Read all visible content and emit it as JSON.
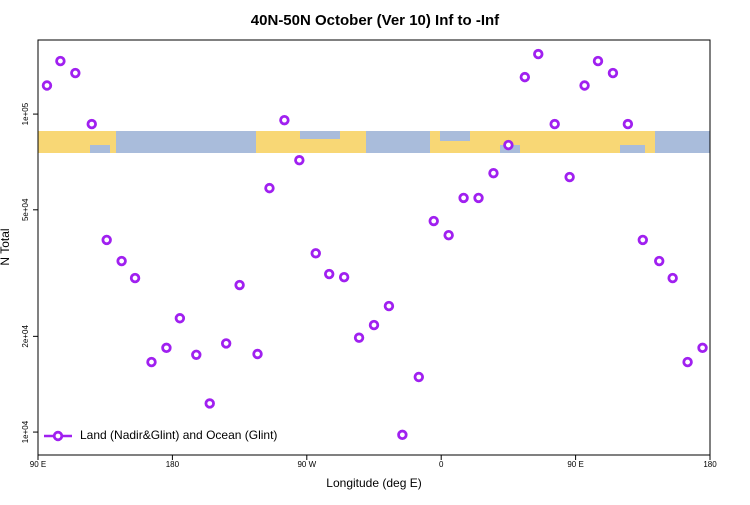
{
  "chart_data": {
    "type": "scatter",
    "title": "40N-50N October (Ver 10)   Inf to -Inf",
    "xlabel": "Longitude (deg E)",
    "ylabel": "N Total",
    "xlim": [
      90,
      540
    ],
    "xticks": [
      {
        "value": 90,
        "label": "90 E"
      },
      180,
      {
        "value": 270,
        "label": "90 W"
      },
      {
        "value": 360,
        "label": "0"
      },
      {
        "value": 450,
        "label": "90 E"
      },
      {
        "value": 540,
        "label": "180"
      }
    ],
    "ylim": [
      8470,
      171000
    ],
    "log_y": true,
    "yticks": [
      {
        "value": 10000,
        "label": "1e+04"
      },
      {
        "value": 20000,
        "label": "2e+04"
      },
      {
        "value": 50000,
        "label": "5e+04"
      },
      {
        "value": 100000,
        "label": "1e+05"
      }
    ],
    "legend": "bottom-left",
    "series": [
      {
        "name": "Land (Nadir&Glint) and Ocean (Glint)",
        "color": "#a020f0",
        "x": [
          96,
          105,
          115,
          126,
          136,
          146,
          155,
          166,
          176,
          185,
          196,
          205,
          216,
          225,
          237,
          245,
          255,
          265,
          276,
          285,
          295,
          305,
          315,
          325,
          334,
          345,
          355,
          365,
          375,
          385,
          395,
          405,
          416,
          425,
          436,
          446,
          456,
          465,
          475,
          485,
          495,
          506,
          515,
          525,
          535
        ],
        "values": [
          123000,
          146800,
          134600,
          93000,
          40200,
          34500,
          30500,
          16600,
          18400,
          22800,
          17500,
          12300,
          19000,
          29000,
          17600,
          58500,
          95700,
          71600,
          36500,
          31400,
          30700,
          19800,
          21700,
          24900,
          9800,
          14900,
          46100,
          41600,
          54500,
          54500,
          65200,
          79900,
          130700,
          154400,
          93000,
          63400,
          123000,
          146800,
          134600,
          93000,
          40200,
          34500,
          30500,
          16600,
          18400
        ]
      }
    ]
  }
}
